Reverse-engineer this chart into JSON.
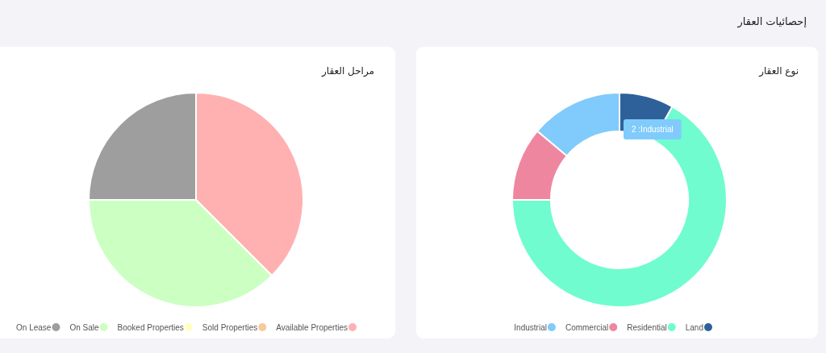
{
  "chart_data": [
    {
      "type": "other",
      "title": "إحصائيات العقار"
    },
    {
      "type": "donut",
      "title": "نوع العقار",
      "categories": [
        "Land",
        "Residential",
        "Commercial",
        "Industrial"
      ],
      "values": [
        8.2,
        66.8,
        11.1,
        13.9
      ],
      "colors": [
        "#2e6199",
        "#70fccf",
        "#ef86a0",
        "#80cbfb"
      ],
      "legend": "bottom",
      "annotations": [
        "2 :Industrial"
      ]
    },
    {
      "type": "pie",
      "title": "مراحل العقار",
      "categories": [
        "Available Properties",
        "Sold Properties",
        "Booked Properties",
        "On Sale",
        "On Lease"
      ],
      "values": [
        37.5,
        0,
        0,
        37.5,
        25
      ],
      "colors": [
        "#ffb1b1",
        "#f7c99b",
        "#ffffbf",
        "#ccffc2",
        "#9e9e9e"
      ],
      "legend": "bottom"
    }
  ]
}
